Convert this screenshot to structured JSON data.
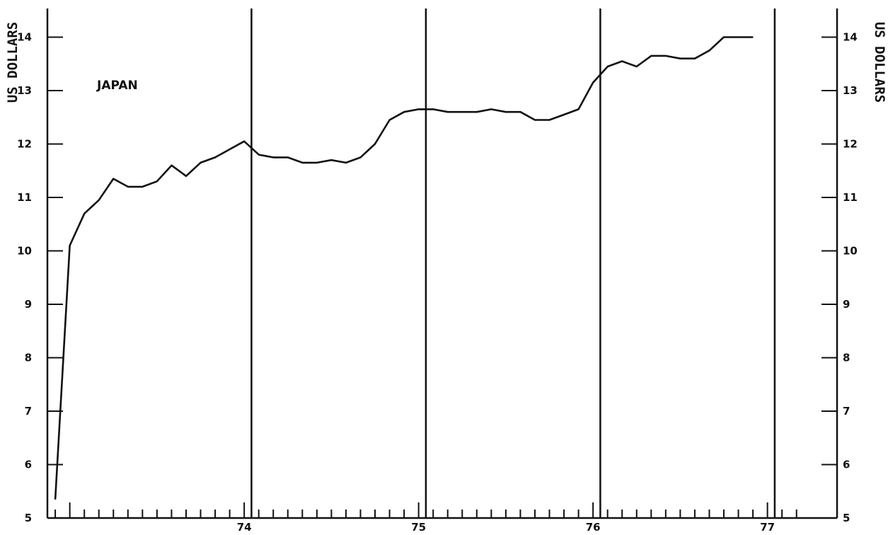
{
  "chart_data": {
    "type": "line",
    "title": "",
    "annotation": "JAPAN",
    "ylabel_left": "US DOLLARS",
    "ylabel_right": "US DOLLARS",
    "ylim": [
      5,
      14.5
    ],
    "y_ticks": [
      "5",
      "6",
      "7",
      "8",
      "9",
      "10",
      "11",
      "12",
      "13",
      "14"
    ],
    "x_range": [
      1973.33,
      1977.67
    ],
    "x_tick_labels": [
      "74",
      "75",
      "76",
      "77"
    ],
    "year_dividers": [
      1974.5,
      1975.5,
      1976.5,
      1977.5
    ],
    "grid": false,
    "series": [
      {
        "name": "",
        "x": [
          1973.375,
          1973.458,
          1973.542,
          1973.625,
          1973.708,
          1973.792,
          1973.875,
          1973.958,
          1974.042,
          1974.125,
          1974.208,
          1974.292,
          1974.375,
          1974.458,
          1974.542,
          1974.625,
          1974.708,
          1974.792,
          1974.875,
          1974.958,
          1975.042,
          1975.125,
          1975.208,
          1975.292,
          1975.375,
          1975.458,
          1975.542,
          1975.625,
          1975.708,
          1975.792,
          1975.875,
          1975.958,
          1976.042,
          1976.125,
          1976.208,
          1976.292,
          1976.375,
          1976.458,
          1976.542,
          1976.625,
          1976.708,
          1976.792,
          1976.875,
          1976.958,
          1977.042,
          1977.125,
          1977.208,
          1977.292,
          1977.375
        ],
        "values": [
          5.35,
          10.1,
          10.7,
          10.95,
          11.35,
          11.2,
          11.2,
          11.3,
          11.6,
          11.4,
          11.65,
          11.75,
          11.9,
          12.05,
          11.8,
          11.75,
          11.75,
          11.65,
          11.65,
          11.7,
          11.65,
          11.75,
          12.0,
          12.45,
          12.6,
          12.65,
          12.65,
          12.6,
          12.6,
          12.6,
          12.65,
          12.6,
          12.6,
          12.45,
          12.45,
          12.55,
          12.65,
          13.15,
          13.45,
          13.55,
          13.45,
          13.65,
          13.65,
          13.6,
          13.6,
          13.75,
          14.0,
          14.0,
          14.0
        ]
      }
    ]
  }
}
